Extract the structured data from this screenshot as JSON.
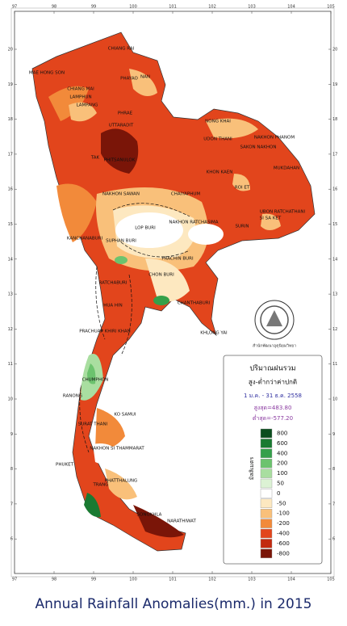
{
  "map": {
    "longitudes": [
      "97",
      "98",
      "99",
      "100",
      "101",
      "102",
      "103",
      "104",
      "105"
    ],
    "latitudes": [
      "20",
      "19",
      "18",
      "17",
      "16",
      "15",
      "14",
      "13",
      "12",
      "11",
      "10",
      "9",
      "8",
      "7",
      "6"
    ],
    "places": [
      "CHIANG RAI",
      "MAE HONG SON",
      "CHIANG MAI",
      "PHAYAO",
      "LAMPHUN",
      "LAMPANG",
      "PHRAE",
      "NAN",
      "UTTARADIT",
      "NONG KHAI",
      "UDON THANI",
      "SAKON NAKHON",
      "NAKHON PHANOM",
      "TAK",
      "PHITSANULOK",
      "KHON KAEN",
      "MUKDAHAN",
      "NAKHON SAWAN",
      "CHAIYAPHUM",
      "ROI ET",
      "UBON RATCHATHANI",
      "NAKHON RATCHASIMA",
      "SURIN",
      "SI SA KET",
      "LOP BURI",
      "SUPHAN BURI",
      "KANCHANABURI",
      "PRACHIN BURI",
      "CHON BURI",
      "RATCHABURI",
      "CHANTHABURI",
      "KHLONG YAI",
      "HUA HIN",
      "PRACHUAP KHIRI KHAN",
      "CHUMPHON",
      "RANONG",
      "SURAT THANI",
      "KO SAMUI",
      "NAKHON SI THAMMARAT",
      "PHUKET",
      "TRANG",
      "PHATTHALUNG",
      "SONGKHLA",
      "NARATHIWAT"
    ],
    "agency": "สำนักพัฒนาอุตุนิยมวิทยา"
  },
  "legend": {
    "title": "ปริมาณฝนรวม",
    "subtitle": "สูง-ต่ำกว่าค่าปกติ",
    "period": "1 ม.ค. - 31 ธ.ค. 2558",
    "max": "สูงสุด=483.80",
    "min": "ต่ำสุด=-577.20",
    "unit": "มิลลิเมตร",
    "classes": [
      {
        "label": "800",
        "color": "#0b4d1e"
      },
      {
        "label": "600",
        "color": "#1a7a32"
      },
      {
        "label": "400",
        "color": "#35a04a"
      },
      {
        "label": "200",
        "color": "#6cc36e"
      },
      {
        "label": "100",
        "color": "#a9dea0"
      },
      {
        "label": "50",
        "color": "#dcf2d4"
      },
      {
        "label": "0",
        "color": "#ffffff"
      },
      {
        "label": "-50",
        "color": "#fde8c0"
      },
      {
        "label": "-100",
        "color": "#f9c07a"
      },
      {
        "label": "-200",
        "color": "#f28a3a"
      },
      {
        "label": "-400",
        "color": "#e2451c"
      },
      {
        "label": "-600",
        "color": "#c22a10"
      },
      {
        "label": "-800",
        "color": "#7a1508"
      }
    ]
  },
  "caption": "Annual Rainfall Anomalies(mm.) in 2015"
}
